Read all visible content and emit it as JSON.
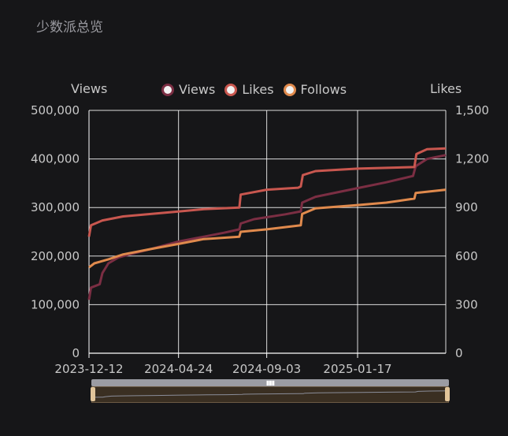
{
  "page": {
    "title": "少数派总览"
  },
  "colors": {
    "background": "#161618",
    "grid": "#ffffff",
    "views": "#7b2e43",
    "likes": "#c9574f",
    "follows": "#e08a4d"
  },
  "icons": {
    "zoom_grip": "grip-icon"
  },
  "chart_data": {
    "type": "line",
    "x_type": "date",
    "x_range": [
      "2023-12-12",
      "2025-05-29"
    ],
    "x_ticks": [
      "2023-12-12",
      "2024-04-24",
      "2024-09-03",
      "2025-01-17"
    ],
    "y_left": {
      "label": "Views",
      "range": [
        0,
        500000
      ],
      "ticks": [
        "0",
        "100,000",
        "200,000",
        "300,000",
        "400,000",
        "500,000"
      ]
    },
    "y_right": {
      "label": "Likes",
      "range": [
        0,
        1500
      ],
      "ticks": [
        "0",
        "300",
        "600",
        "900",
        "1,200",
        "1,500"
      ]
    },
    "grid": true,
    "legend_position": "top-center",
    "series": [
      {
        "name": "Views",
        "axis": "left",
        "points": [
          [
            "2023-12-12",
            110000
          ],
          [
            "2023-12-15",
            135000
          ],
          [
            "2023-12-28",
            142000
          ],
          [
            "2024-01-01",
            165000
          ],
          [
            "2024-01-10",
            185000
          ],
          [
            "2024-01-25",
            197000
          ],
          [
            "2024-02-15",
            205000
          ],
          [
            "2024-03-15",
            215000
          ],
          [
            "2024-04-24",
            230000
          ],
          [
            "2024-06-01",
            240000
          ],
          [
            "2024-07-01",
            248000
          ],
          [
            "2024-07-24",
            255000
          ],
          [
            "2024-07-26",
            267000
          ],
          [
            "2024-08-15",
            276000
          ],
          [
            "2024-09-03",
            280000
          ],
          [
            "2024-10-01",
            286000
          ],
          [
            "2024-10-24",
            292000
          ],
          [
            "2024-10-26",
            310000
          ],
          [
            "2024-11-15",
            322000
          ],
          [
            "2025-01-17",
            340000
          ],
          [
            "2025-03-01",
            352000
          ],
          [
            "2025-04-10",
            365000
          ],
          [
            "2025-04-14",
            385000
          ],
          [
            "2025-05-01",
            400000
          ],
          [
            "2025-05-29",
            408000
          ]
        ]
      },
      {
        "name": "Likes",
        "axis": "right",
        "points": [
          [
            "2023-12-12",
            720
          ],
          [
            "2023-12-15",
            790
          ],
          [
            "2024-01-01",
            820
          ],
          [
            "2024-02-01",
            845
          ],
          [
            "2024-04-24",
            875
          ],
          [
            "2024-06-01",
            890
          ],
          [
            "2024-07-24",
            900
          ],
          [
            "2024-07-26",
            980
          ],
          [
            "2024-09-03",
            1010
          ],
          [
            "2024-10-20",
            1022
          ],
          [
            "2024-10-24",
            1030
          ],
          [
            "2024-10-27",
            1100
          ],
          [
            "2024-11-15",
            1125
          ],
          [
            "2025-01-17",
            1140
          ],
          [
            "2025-04-12",
            1150
          ],
          [
            "2025-04-15",
            1230
          ],
          [
            "2025-05-01",
            1260
          ],
          [
            "2025-05-29",
            1265
          ]
        ]
      },
      {
        "name": "Follows",
        "axis": "right",
        "points": [
          [
            "2023-12-12",
            530
          ],
          [
            "2023-12-20",
            555
          ],
          [
            "2024-01-10",
            580
          ],
          [
            "2024-02-01",
            610
          ],
          [
            "2024-03-15",
            645
          ],
          [
            "2024-04-24",
            675
          ],
          [
            "2024-06-01",
            705
          ],
          [
            "2024-07-24",
            720
          ],
          [
            "2024-07-26",
            750
          ],
          [
            "2024-09-03",
            765
          ],
          [
            "2024-10-24",
            790
          ],
          [
            "2024-10-26",
            860
          ],
          [
            "2024-11-15",
            895
          ],
          [
            "2025-01-17",
            915
          ],
          [
            "2025-03-01",
            930
          ],
          [
            "2025-04-12",
            955
          ],
          [
            "2025-04-14",
            990
          ],
          [
            "2025-05-29",
            1010
          ]
        ]
      }
    ]
  }
}
